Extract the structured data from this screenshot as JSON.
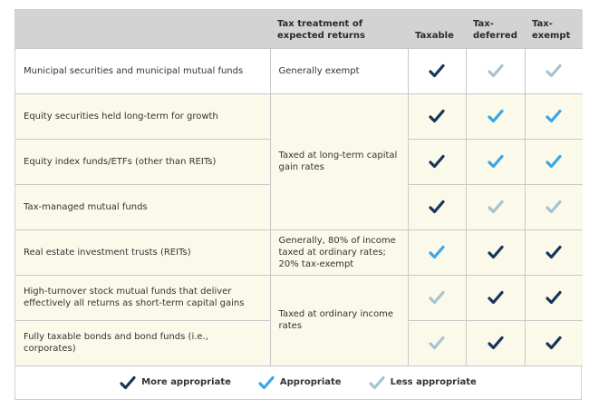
{
  "colors": {
    "more": "#15365a",
    "appropriate": "#3aa6e8",
    "less": "#a9c2d2"
  },
  "header": {
    "col1": "",
    "col2": "Tax treatment of expected returns",
    "col3": "Taxable",
    "col4": "Tax-deferred",
    "col5": "Tax-exempt"
  },
  "rows": [
    {
      "label": "Municipal securities and municipal mutual funds",
      "treatment": "Generally exempt",
      "marks": [
        "more",
        "less",
        "less"
      ]
    },
    {
      "label": "Equity securities held long-term for growth",
      "treatment": "Taxed at long-term capital gain rates",
      "marks": [
        "more",
        "appropriate",
        "appropriate"
      ]
    },
    {
      "label": "Equity index funds/ETFs (other than REITs)",
      "marks": [
        "more",
        "appropriate",
        "appropriate"
      ]
    },
    {
      "label": "Tax-managed mutual funds",
      "marks": [
        "more",
        "less",
        "less"
      ]
    },
    {
      "label": "Real estate investment trusts (REITs)",
      "treatment": "Generally, 80% of income taxed at ordinary rates; 20% tax-exempt",
      "marks": [
        "appropriate",
        "more",
        "more"
      ]
    },
    {
      "label": "High-turnover stock mutual funds that deliver effectively all returns as short-term capital gains",
      "treatment": "Taxed at ordinary income rates",
      "marks": [
        "less",
        "more",
        "more"
      ]
    },
    {
      "label": "Fully taxable bonds and bond funds (i.e., corporates)",
      "marks": [
        "less",
        "more",
        "more"
      ]
    }
  ],
  "legend": [
    {
      "key": "more",
      "label": "More appropriate"
    },
    {
      "key": "appropriate",
      "label": "Appropriate"
    },
    {
      "key": "less",
      "label": "Less appropriate"
    }
  ]
}
